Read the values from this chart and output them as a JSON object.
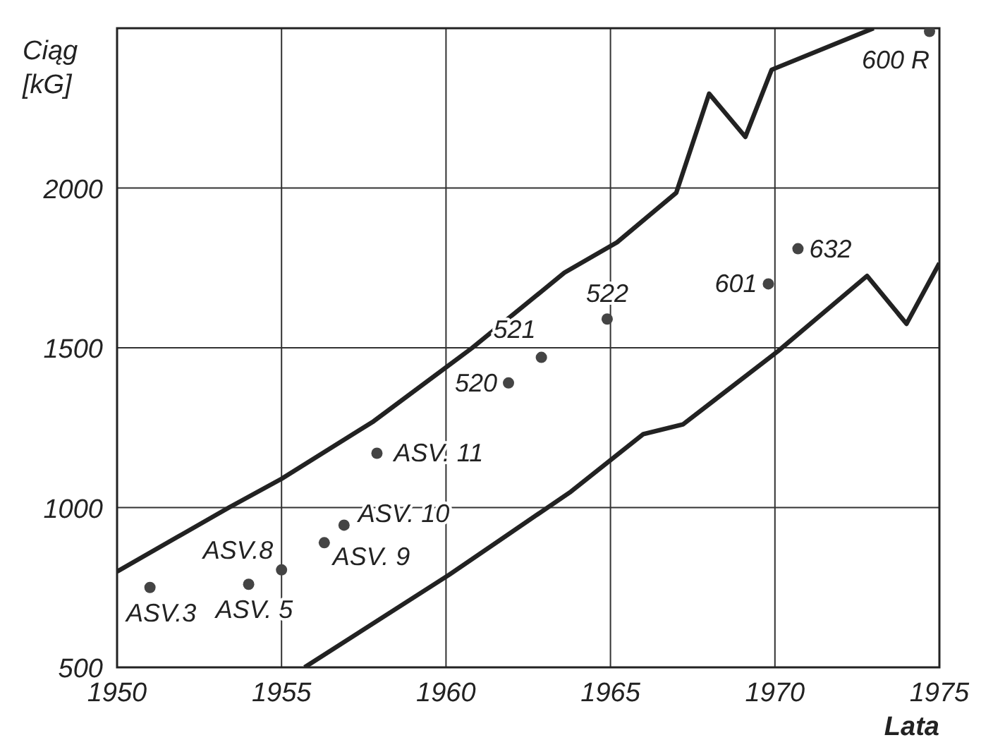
{
  "chart_data": {
    "type": "scatter",
    "xlabel": "Lata",
    "ylabel": "Ciąg [kG]",
    "xlim": [
      1950,
      1975
    ],
    "xticks": [
      1950,
      1955,
      1960,
      1965,
      1970,
      1975
    ],
    "ylim": [
      500,
      2500
    ],
    "yticks": [
      500,
      1000,
      1500,
      2000
    ],
    "grid": true,
    "series": [
      {
        "color": "#444444",
        "marker": "circle",
        "x": [
          1951,
          1954,
          1955,
          1956.3,
          1956.9,
          1957.9,
          1961.9,
          1962.9,
          1964.9,
          1969.8,
          1970.7,
          1974.7
        ],
        "values": [
          750,
          760,
          805,
          890,
          945,
          1170,
          1390,
          1470,
          1590,
          1700,
          1810,
          2490
        ]
      },
      {
        "type": "line",
        "color": "#222222",
        "marker": "none",
        "x": [
          1950,
          1953.4,
          1955,
          1957.8,
          1960.8,
          1963.6,
          1965.2,
          1967,
          1968,
          1969.1,
          1969.9,
          1973
        ],
        "values": [
          800,
          1000,
          1090,
          1270,
          1500,
          1735,
          1830,
          1985,
          2295,
          2160,
          2370,
          2500
        ]
      },
      {
        "type": "line",
        "color": "#222222",
        "marker": "none",
        "x": [
          1955.7,
          1960.1,
          1963.8,
          1966,
          1967.2,
          1970.1,
          1972.8,
          1974,
          1975
        ],
        "values": [
          500,
          790,
          1050,
          1230,
          1260,
          1490,
          1725,
          1575,
          1765
        ]
      }
    ],
    "annotations": [
      {
        "text": "ASV.3",
        "x": 1951,
        "y": 750
      },
      {
        "text": "ASV. 5",
        "x": 1954,
        "y": 760
      },
      {
        "text": "ASV.8",
        "x": 1955,
        "y": 805
      },
      {
        "text": "ASV. 9",
        "x": 1956.3,
        "y": 890
      },
      {
        "text": "ASV. 10",
        "x": 1956.9,
        "y": 945
      },
      {
        "text": "ASV. 11",
        "x": 1957.9,
        "y": 1170
      },
      {
        "text": "520",
        "x": 1961.9,
        "y": 1390
      },
      {
        "text": "521",
        "x": 1962.9,
        "y": 1470
      },
      {
        "text": "522",
        "x": 1964.9,
        "y": 1590
      },
      {
        "text": "601",
        "x": 1969.8,
        "y": 1700
      },
      {
        "text": "632",
        "x": 1970.7,
        "y": 1810
      },
      {
        "text": "600 R",
        "x": 1974.7,
        "y": 2490
      }
    ]
  }
}
